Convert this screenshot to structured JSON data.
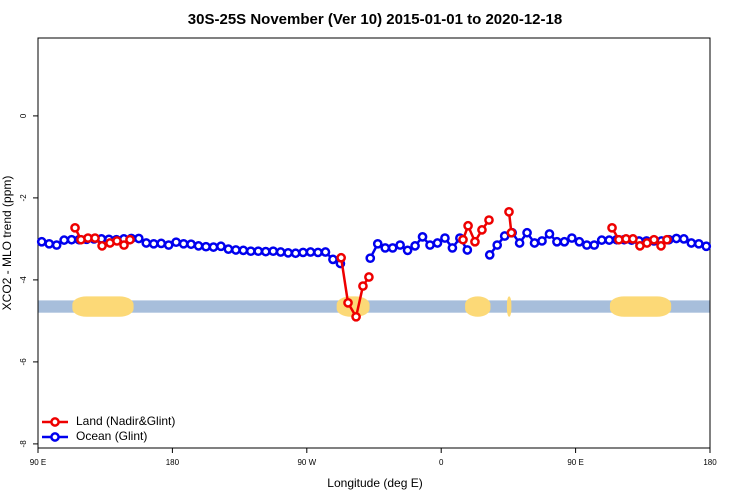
{
  "chart_data": {
    "type": "line",
    "title": "30S-25S November (Ver 10)   2015-01-01 to 2020-12-18",
    "xlabel": "Longitude (deg E)",
    "ylabel": "XCO2 - MLO trend (ppm)",
    "xlim": [
      90,
      540
    ],
    "ylim": [
      -8.1,
      1.9
    ],
    "xticks": [
      {
        "value": 90,
        "label": "90 E"
      },
      180,
      {
        "value": 270,
        "label": "90 W"
      },
      {
        "value": 360,
        "label": "0"
      },
      {
        "value": 450,
        "label": "90 E"
      },
      {
        "value": 540,
        "label": "180"
      }
    ],
    "yticks": [
      0,
      -2,
      -4,
      -6,
      -8
    ],
    "legend": "bottom-left",
    "surface_band": {
      "ylim": [
        -4.8,
        -4.5
      ],
      "color": "#a7bedb",
      "land_color": "#fcd977",
      "land": [
        [
          113,
          154
        ],
        [
          290,
          312
        ],
        [
          376,
          393
        ],
        [
          404,
          407
        ],
        [
          473,
          514
        ]
      ]
    },
    "series": [
      {
        "name": "Ocean (Glint)",
        "color": "#0000ee",
        "x": [
          92.5,
          97.5,
          102.5,
          107.5,
          112.5,
          117.5,
          122.5,
          127.5,
          132.5,
          137.5,
          142.5,
          147.5,
          152.5,
          157.5,
          162.5,
          167.5,
          172.5,
          177.5,
          182.5,
          187.5,
          192.5,
          197.5,
          202.5,
          207.5,
          212.5,
          217.5,
          222.5,
          227.5,
          232.5,
          237.5,
          242.5,
          247.5,
          252.5,
          257.5,
          262.5,
          267.5,
          272.5,
          277.5,
          282.5,
          287.5,
          292.5,
          297.5,
          302.5,
          307.5,
          312.5,
          317.5,
          322.5,
          327.5,
          332.5,
          337.5,
          342.5,
          347.5,
          352.5,
          357.5,
          362.5,
          367.5,
          372.5,
          377.5,
          382.5,
          387.5,
          392.5,
          397.5,
          402.5,
          407.5,
          412.5,
          417.5,
          422.5,
          427.5,
          432.5,
          437.5,
          442.5,
          447.5,
          452.5,
          457.5,
          462.5,
          467.5,
          472.5,
          477.5,
          482.5,
          487.5,
          492.5,
          497.5,
          502.5,
          507.5,
          512.5,
          517.5,
          522.5,
          527.5,
          532.5,
          537.5
        ],
        "values": [
          -3.07,
          -3.12,
          -3.15,
          -3.03,
          -3.02,
          -3.02,
          -3.01,
          -3.0,
          -3.0,
          -3.01,
          -3.02,
          -3.0,
          -2.99,
          -2.99,
          -3.1,
          -3.12,
          -3.11,
          -3.15,
          -3.08,
          -3.12,
          -3.13,
          -3.17,
          -3.19,
          -3.2,
          -3.18,
          -3.25,
          -3.27,
          -3.28,
          -3.3,
          -3.3,
          -3.31,
          -3.3,
          -3.32,
          -3.34,
          -3.35,
          -3.33,
          -3.32,
          -3.33,
          -3.32,
          -3.5,
          -3.6,
          null,
          null,
          null,
          -3.47,
          -3.12,
          -3.22,
          -3.22,
          -3.15,
          -3.28,
          -3.17,
          -2.95,
          -3.15,
          -3.1,
          -2.98,
          -3.22,
          -2.98,
          -3.27,
          null,
          null,
          -3.39,
          -3.15,
          -2.93,
          -2.85,
          -3.1,
          -2.85,
          -3.1,
          -3.05,
          -2.88,
          -3.07,
          -3.07,
          -2.98,
          -3.07,
          -3.15,
          -3.15,
          -3.03,
          -3.03,
          -3.02,
          -3.02,
          -3.03,
          -3.05,
          -3.05,
          -3.05,
          -3.05,
          -3.02,
          -2.99,
          -3.0,
          -3.1,
          -3.12,
          -3.18
        ]
      },
      {
        "name": "Land (Nadir&Glint)",
        "color": "#ee0000",
        "x": [
          114.8,
          118.8,
          123.5,
          128.2,
          132.9,
          138.2,
          142.9,
          147.6,
          151.6,
          null,
          293,
          297.6,
          303,
          307.6,
          311.6,
          null,
          374.6,
          378,
          382.6,
          387.3,
          392,
          null,
          405.4,
          407,
          null,
          474.4,
          479,
          483.8,
          488.4,
          493.1,
          497.8,
          502.5,
          507.2,
          511.2
        ],
        "values": [
          -2.73,
          -3.02,
          -2.98,
          -2.98,
          -3.17,
          -3.1,
          -3.05,
          -3.15,
          -3.02,
          null,
          -3.46,
          -4.56,
          -4.9,
          -4.15,
          -3.93,
          null,
          -3.02,
          -2.68,
          -3.07,
          -2.78,
          -2.54,
          null,
          -2.34,
          -2.85,
          null,
          -2.73,
          -3.02,
          -3.0,
          -3.0,
          -3.17,
          -3.1,
          -3.02,
          -3.17,
          -3.02
        ]
      }
    ]
  }
}
